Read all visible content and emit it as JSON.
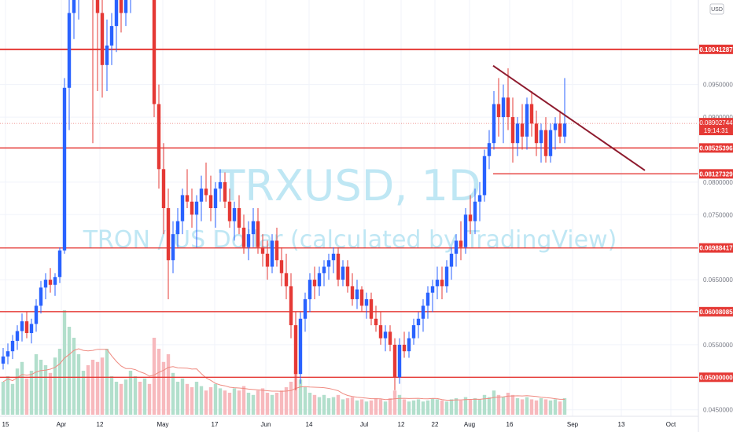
{
  "chart_data": {
    "type": "candlestick",
    "title": "TRXUSD, 1D",
    "subtitle": "TRON / US Dollar (calculated by TradingView)",
    "currency": "USD",
    "y_tick_labels": [
      "0.09500000",
      "0.09000000",
      "0.08000000",
      "0.07500000",
      "0.06500000",
      "0.05500000",
      "0.04500000"
    ],
    "y_tick_values": [
      0.095,
      0.09,
      0.08,
      0.075,
      0.065,
      0.055,
      0.045
    ],
    "x_tick_labels": [
      "15",
      "Apr",
      "12",
      "May",
      "17",
      "Jun",
      "14",
      "Jul",
      "12",
      "22",
      "Aug",
      "16",
      "Sep",
      "13",
      "Oct"
    ],
    "levels": [
      {
        "label": "0.10041287",
        "value": 0.10041287,
        "color": "#e53935"
      },
      {
        "label": "0.08525396",
        "value": 0.08525396,
        "color": "#e53935"
      },
      {
        "label": "0.08127329",
        "value": 0.08127329,
        "color": "#e53935"
      },
      {
        "label": "0.06988417",
        "value": 0.06988417,
        "color": "#e53935"
      },
      {
        "label": "0.06008085",
        "value": 0.06008085,
        "color": "#e53935"
      },
      {
        "label": "0.05000000",
        "value": 0.05,
        "color": "#e53935"
      }
    ],
    "current_price": {
      "label": "0.08902744",
      "countdown": "19:14:31",
      "value": 0.08902744,
      "color": "#e53935"
    },
    "trendline": {
      "start_value": 0.0979,
      "end_value": 0.0818,
      "color": "#8e1b2e"
    },
    "colors": {
      "up": "#2962ff",
      "down": "#e53935",
      "volume_up": "#b2dfcc",
      "volume_down": "#f7b9bd",
      "volume_ma": "#ef8a80"
    },
    "candles_ohlc": [
      [
        0.0521,
        0.0545,
        0.0512,
        0.0532
      ],
      [
        0.0532,
        0.0552,
        0.052,
        0.054
      ],
      [
        0.054,
        0.0565,
        0.0528,
        0.0556
      ],
      [
        0.0556,
        0.058,
        0.0542,
        0.0571
      ],
      [
        0.0571,
        0.0598,
        0.0555,
        0.0586
      ],
      [
        0.0586,
        0.06,
        0.056,
        0.0568
      ],
      [
        0.0568,
        0.059,
        0.0552,
        0.0582
      ],
      [
        0.0582,
        0.062,
        0.057,
        0.061
      ],
      [
        0.061,
        0.0648,
        0.0598,
        0.0638
      ],
      [
        0.0638,
        0.066,
        0.062,
        0.065
      ],
      [
        0.065,
        0.0668,
        0.063,
        0.0642
      ],
      [
        0.0642,
        0.066,
        0.0625,
        0.0654
      ],
      [
        0.0654,
        0.07,
        0.0645,
        0.0695
      ],
      [
        0.0695,
        0.096,
        0.069,
        0.0945
      ],
      [
        0.0945,
        0.109,
        0.088,
        0.106
      ],
      [
        0.106,
        0.114,
        0.102,
        0.11
      ],
      [
        0.11,
        0.118,
        0.105,
        0.112
      ],
      [
        0.112,
        0.1165,
        0.108,
        0.114
      ],
      [
        0.114,
        0.118,
        0.11,
        0.112
      ],
      [
        0.112,
        0.115,
        0.086,
        0.1095
      ],
      [
        0.1095,
        0.112,
        0.094,
        0.106
      ],
      [
        0.106,
        0.109,
        0.093,
        0.098
      ],
      [
        0.098,
        0.105,
        0.094,
        0.101
      ],
      [
        0.101,
        0.106,
        0.098,
        0.104
      ],
      [
        0.104,
        0.109,
        0.1,
        0.108
      ],
      [
        0.108,
        0.11,
        0.103,
        0.106
      ],
      [
        0.106,
        0.112,
        0.104,
        0.11
      ],
      [
        0.11,
        0.114,
        0.106,
        0.112
      ],
      [
        0.112,
        0.116,
        0.108,
        0.114
      ],
      [
        0.114,
        0.115,
        0.108,
        0.11
      ],
      [
        0.11,
        0.116,
        0.109,
        0.115
      ],
      [
        0.115,
        0.118,
        0.111,
        0.113
      ],
      [
        0.113,
        0.115,
        0.09,
        0.092
      ],
      [
        0.092,
        0.095,
        0.079,
        0.082
      ],
      [
        0.082,
        0.086,
        0.072,
        0.076
      ],
      [
        0.076,
        0.079,
        0.062,
        0.068
      ],
      [
        0.068,
        0.074,
        0.066,
        0.072
      ],
      [
        0.072,
        0.076,
        0.07,
        0.074
      ],
      [
        0.074,
        0.079,
        0.072,
        0.078
      ],
      [
        0.078,
        0.082,
        0.076,
        0.077
      ],
      [
        0.077,
        0.079,
        0.073,
        0.075
      ],
      [
        0.075,
        0.078,
        0.07,
        0.077
      ],
      [
        0.077,
        0.081,
        0.074,
        0.079
      ],
      [
        0.079,
        0.083,
        0.077,
        0.078
      ],
      [
        0.078,
        0.081,
        0.074,
        0.076
      ],
      [
        0.076,
        0.08,
        0.073,
        0.079
      ],
      [
        0.079,
        0.082,
        0.077,
        0.08
      ],
      [
        0.08,
        0.0815,
        0.076,
        0.077
      ],
      [
        0.077,
        0.079,
        0.073,
        0.074
      ],
      [
        0.074,
        0.077,
        0.071,
        0.076
      ],
      [
        0.076,
        0.078,
        0.072,
        0.073
      ],
      [
        0.073,
        0.075,
        0.069,
        0.07
      ],
      [
        0.07,
        0.074,
        0.068,
        0.072
      ],
      [
        0.072,
        0.076,
        0.07,
        0.074
      ],
      [
        0.074,
        0.076,
        0.069,
        0.07
      ],
      [
        0.07,
        0.072,
        0.067,
        0.069
      ],
      [
        0.069,
        0.071,
        0.065,
        0.067
      ],
      [
        0.067,
        0.072,
        0.066,
        0.071
      ],
      [
        0.071,
        0.073,
        0.067,
        0.068
      ],
      [
        0.068,
        0.07,
        0.064,
        0.066
      ],
      [
        0.066,
        0.069,
        0.062,
        0.064
      ],
      [
        0.064,
        0.066,
        0.056,
        0.058
      ],
      [
        0.058,
        0.06,
        0.048,
        0.0505
      ],
      [
        0.0505,
        0.06,
        0.049,
        0.059
      ],
      [
        0.059,
        0.063,
        0.057,
        0.062
      ],
      [
        0.062,
        0.066,
        0.06,
        0.065
      ],
      [
        0.065,
        0.067,
        0.062,
        0.064
      ],
      [
        0.064,
        0.067,
        0.0625,
        0.066
      ],
      [
        0.066,
        0.068,
        0.064,
        0.067
      ],
      [
        0.067,
        0.069,
        0.065,
        0.068
      ],
      [
        0.068,
        0.07,
        0.066,
        0.069
      ],
      [
        0.069,
        0.07,
        0.064,
        0.065
      ],
      [
        0.065,
        0.068,
        0.064,
        0.067
      ],
      [
        0.067,
        0.068,
        0.063,
        0.064
      ],
      [
        0.064,
        0.066,
        0.061,
        0.062
      ],
      [
        0.062,
        0.065,
        0.0605,
        0.0635
      ],
      [
        0.0635,
        0.064,
        0.06,
        0.061
      ],
      [
        0.061,
        0.063,
        0.059,
        0.062
      ],
      [
        0.062,
        0.063,
        0.058,
        0.059
      ],
      [
        0.059,
        0.061,
        0.057,
        0.058
      ],
      [
        0.058,
        0.06,
        0.055,
        0.056
      ],
      [
        0.056,
        0.058,
        0.054,
        0.057
      ],
      [
        0.057,
        0.058,
        0.054,
        0.055
      ],
      [
        0.055,
        0.056,
        0.048,
        0.05
      ],
      [
        0.05,
        0.056,
        0.049,
        0.055
      ],
      [
        0.055,
        0.057,
        0.053,
        0.054
      ],
      [
        0.054,
        0.057,
        0.053,
        0.056
      ],
      [
        0.056,
        0.059,
        0.055,
        0.058
      ],
      [
        0.058,
        0.06,
        0.056,
        0.059
      ],
      [
        0.059,
        0.062,
        0.057,
        0.061
      ],
      [
        0.061,
        0.064,
        0.059,
        0.063
      ],
      [
        0.063,
        0.065,
        0.06,
        0.064
      ],
      [
        0.064,
        0.067,
        0.062,
        0.065
      ],
      [
        0.065,
        0.067,
        0.062,
        0.064
      ],
      [
        0.064,
        0.068,
        0.063,
        0.067
      ],
      [
        0.067,
        0.07,
        0.065,
        0.069
      ],
      [
        0.069,
        0.072,
        0.067,
        0.071
      ],
      [
        0.071,
        0.074,
        0.068,
        0.07
      ],
      [
        0.07,
        0.076,
        0.069,
        0.075
      ],
      [
        0.075,
        0.078,
        0.072,
        0.074
      ],
      [
        0.074,
        0.079,
        0.072,
        0.077
      ],
      [
        0.077,
        0.08,
        0.074,
        0.078
      ],
      [
        0.078,
        0.085,
        0.077,
        0.084
      ],
      [
        0.084,
        0.088,
        0.082,
        0.086
      ],
      [
        0.086,
        0.094,
        0.085,
        0.092
      ],
      [
        0.092,
        0.096,
        0.087,
        0.09
      ],
      [
        0.09,
        0.095,
        0.086,
        0.093
      ],
      [
        0.093,
        0.0975,
        0.088,
        0.09
      ],
      [
        0.09,
        0.093,
        0.083,
        0.086
      ],
      [
        0.086,
        0.09,
        0.084,
        0.089
      ],
      [
        0.089,
        0.092,
        0.085,
        0.087
      ],
      [
        0.087,
        0.093,
        0.085,
        0.092
      ],
      [
        0.092,
        0.094,
        0.087,
        0.089
      ],
      [
        0.089,
        0.091,
        0.084,
        0.086
      ],
      [
        0.086,
        0.089,
        0.083,
        0.088
      ],
      [
        0.088,
        0.09,
        0.083,
        0.084
      ],
      [
        0.084,
        0.089,
        0.083,
        0.088
      ],
      [
        0.088,
        0.09,
        0.085,
        0.089
      ],
      [
        0.089,
        0.091,
        0.086,
        0.087
      ],
      [
        0.087,
        0.096,
        0.086,
        0.089
      ]
    ],
    "volume": [
      0.3,
      0.35,
      0.28,
      0.42,
      0.48,
      0.33,
      0.4,
      0.55,
      0.5,
      0.45,
      0.38,
      0.52,
      0.6,
      0.95,
      0.8,
      0.7,
      0.55,
      0.4,
      0.45,
      0.5,
      0.48,
      0.52,
      0.6,
      0.35,
      0.3,
      0.28,
      0.32,
      0.4,
      0.35,
      0.3,
      0.33,
      0.28,
      0.7,
      0.6,
      0.48,
      0.55,
      0.38,
      0.3,
      0.33,
      0.28,
      0.25,
      0.3,
      0.26,
      0.22,
      0.25,
      0.28,
      0.24,
      0.22,
      0.2,
      0.24,
      0.22,
      0.26,
      0.2,
      0.18,
      0.22,
      0.24,
      0.2,
      0.18,
      0.2,
      0.22,
      0.25,
      0.3,
      0.4,
      0.32,
      0.25,
      0.2,
      0.18,
      0.16,
      0.18,
      0.15,
      0.16,
      0.18,
      0.14,
      0.15,
      0.16,
      0.13,
      0.14,
      0.12,
      0.13,
      0.15,
      0.14,
      0.12,
      0.15,
      0.22,
      0.18,
      0.14,
      0.12,
      0.13,
      0.14,
      0.12,
      0.13,
      0.15,
      0.14,
      0.13,
      0.12,
      0.14,
      0.15,
      0.13,
      0.16,
      0.14,
      0.15,
      0.14,
      0.18,
      0.16,
      0.22,
      0.18,
      0.16,
      0.2,
      0.18,
      0.15,
      0.14,
      0.16,
      0.14,
      0.13,
      0.15,
      0.14,
      0.13,
      0.14,
      0.12,
      0.15
    ],
    "y_range": [
      0.044,
      0.108
    ]
  }
}
